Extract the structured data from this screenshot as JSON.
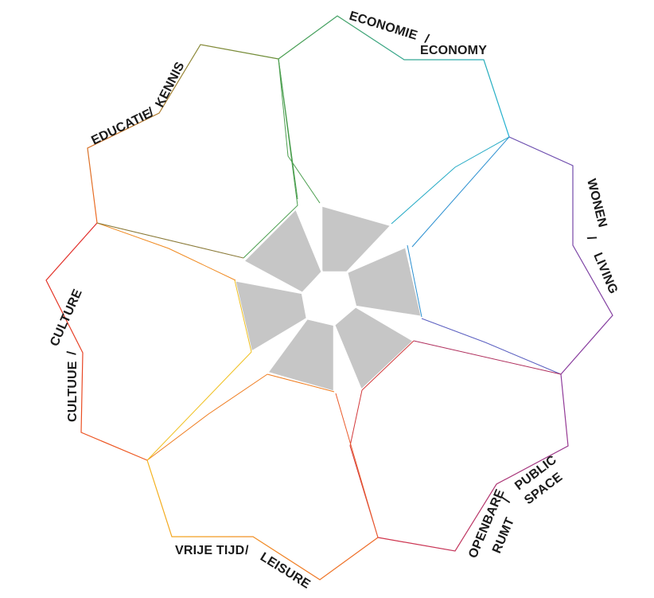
{
  "categories": [
    {
      "id": "economy",
      "label_nl": "ECONOMIE",
      "separator": "/",
      "label_en": "ECONOMY",
      "color": "#21a9c4"
    },
    {
      "id": "living",
      "label_nl": "WONEN",
      "separator": "/",
      "label_en": "LIVING",
      "color": "#7b3fa0"
    },
    {
      "id": "public-space",
      "label_nl": [
        "OPENBARE",
        "RUMT"
      ],
      "separator": "/",
      "label_en": [
        "PUBLIC",
        "SPACE"
      ],
      "color": "#b12a7e"
    },
    {
      "id": "leisure",
      "label_nl": "VRIJE TIJD",
      "separator": "/",
      "label_en": "LEISURE",
      "color": "#ef7c1f"
    },
    {
      "id": "culture",
      "label_nl": "CULTUUE",
      "separator": "/",
      "label_en": "CULTURE",
      "color": "#e0301f"
    },
    {
      "id": "education",
      "label_nl": "EDUCATIE",
      "separator": "/",
      "label_en": "KENNIS",
      "color": "#5a9a3b"
    }
  ],
  "colors": {
    "core_fill": "#c6c6c6",
    "background": "#ffffff"
  }
}
